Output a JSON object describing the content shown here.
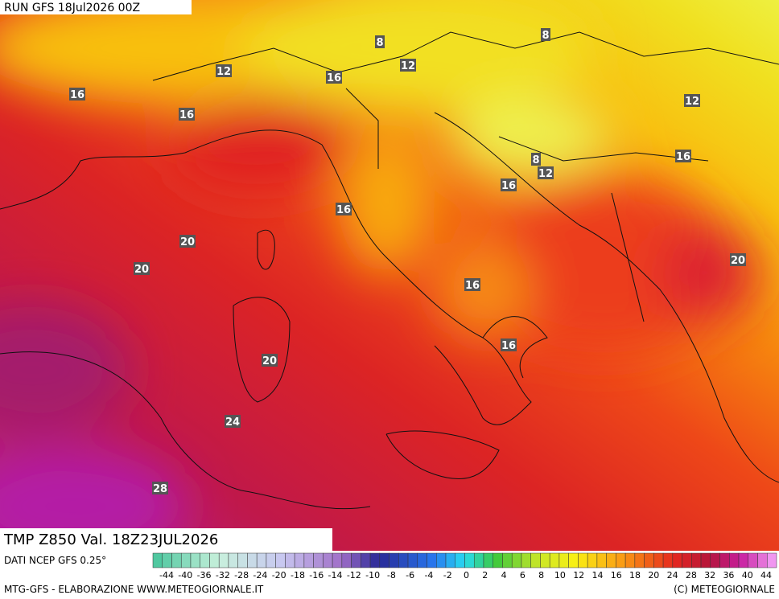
{
  "header": {
    "run": "RUN GFS 18Jul2026 00Z",
    "field": "TMP Z850 Val. 18Z23JUL2026",
    "source": "DATI NCEP GFS 0.25°"
  },
  "contour_labels": [
    8,
    8,
    12,
    12,
    16,
    16,
    12,
    16,
    8,
    12,
    16,
    16,
    16,
    20,
    20,
    20,
    16,
    16,
    20,
    24,
    28
  ],
  "colorbar": {
    "labels": [
      -44,
      -40,
      -36,
      -32,
      -28,
      -24,
      -20,
      -18,
      -16,
      -14,
      -12,
      -10,
      -8,
      -6,
      -4,
      -2,
      0,
      2,
      4,
      6,
      8,
      10,
      12,
      14,
      16,
      18,
      20,
      24,
      28,
      32,
      36,
      40,
      44
    ]
  },
  "footer": {
    "left": "MTG-GFS - ELABORAZIONE WWW.METEOGIORNALE.IT",
    "right": "(C) METEOGIORNALE"
  }
}
